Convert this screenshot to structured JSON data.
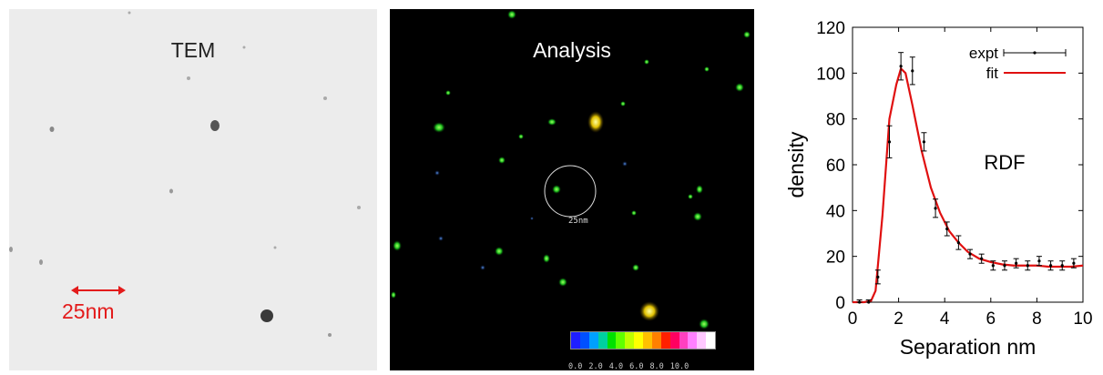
{
  "panels": {
    "tem": {
      "title": "TEM",
      "scale_label": "25nm"
    },
    "analysis": {
      "title": "Analysis",
      "circle_label": "25nm",
      "colorbar_ticks": [
        "0.0",
        "2.0",
        "4.0",
        "6.0",
        "8.0",
        "10.0"
      ],
      "colorbar_colors": [
        "#1e1eff",
        "#0050ff",
        "#00a0ff",
        "#00d0a0",
        "#00e000",
        "#60ff00",
        "#c0ff00",
        "#ffff00",
        "#ffc000",
        "#ff8000",
        "#ff2000",
        "#ff0060",
        "#ff40c0",
        "#ff80ff",
        "#ffc8ff",
        "#ffffff"
      ]
    }
  },
  "chart_data": {
    "type": "line",
    "xlabel": "Separation nm",
    "ylabel": "density",
    "annotation": "RDF",
    "xlim": [
      0,
      10
    ],
    "ylim": [
      0,
      120
    ],
    "xticks": [
      0,
      2,
      4,
      6,
      8,
      10
    ],
    "yticks": [
      0,
      20,
      40,
      60,
      80,
      100,
      120
    ],
    "legend": {
      "placement": "top-right",
      "entries": [
        "expt",
        "fit"
      ]
    },
    "series": [
      {
        "name": "expt",
        "kind": "errorbar",
        "color": "#000000",
        "x": [
          0.3,
          0.7,
          1.1,
          1.6,
          2.1,
          2.6,
          3.1,
          3.6,
          4.1,
          4.6,
          5.1,
          5.6,
          6.1,
          6.6,
          7.1,
          7.6,
          8.1,
          8.6,
          9.1,
          9.6
        ],
        "y": [
          0,
          0,
          11,
          70,
          103,
          101,
          70,
          41,
          32,
          26,
          21,
          19,
          16,
          16,
          17,
          16,
          18,
          16,
          16,
          17
        ],
        "err": [
          1,
          1,
          3,
          7,
          6,
          6,
          4,
          4,
          3,
          3,
          2,
          2,
          2,
          2,
          2,
          2,
          2,
          2,
          2,
          2
        ]
      },
      {
        "name": "fit",
        "kind": "line",
        "color": "#e01010",
        "x": [
          0,
          0.5,
          0.8,
          1.0,
          1.3,
          1.6,
          1.9,
          2.1,
          2.3,
          2.6,
          3.0,
          3.4,
          3.8,
          4.2,
          4.6,
          5.0,
          5.5,
          6.0,
          6.5,
          7.0,
          7.5,
          8.0,
          8.5,
          9.0,
          9.5,
          10.0
        ],
        "y": [
          0,
          0,
          0.5,
          5,
          38,
          80,
          95,
          102,
          100,
          86,
          66,
          50,
          39,
          31,
          26,
          22,
          19,
          17.5,
          16.5,
          16,
          16,
          16,
          15.5,
          15.5,
          15.5,
          16
        ]
      }
    ]
  }
}
